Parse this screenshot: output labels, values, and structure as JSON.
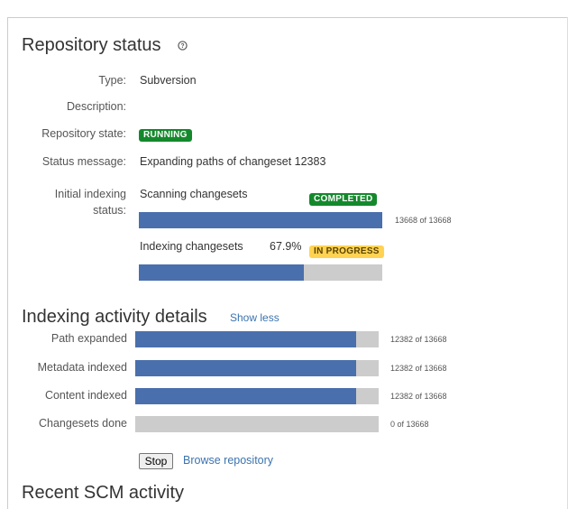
{
  "repository_status": {
    "title": "Repository status",
    "help_icon": "help-icon",
    "fields": {
      "type": {
        "label": "Type:",
        "value": "Subversion"
      },
      "description": {
        "label": "Description:",
        "value": ""
      },
      "state": {
        "label": "Repository state:",
        "badge": "RUNNING"
      },
      "message": {
        "label": "Status message:",
        "value": "Expanding paths of changeset 12383"
      }
    },
    "initial_indexing": {
      "label_line1": "Initial indexing",
      "label_line2": "status:",
      "scanning": {
        "label": "Scanning changesets",
        "badge": "COMPLETED",
        "count_text": "13668 of 13668",
        "done": 13668,
        "total": 13668
      },
      "indexing": {
        "label": "Indexing changesets",
        "percent_text": "67.9%",
        "badge": "IN PROGRESS",
        "progress": 0.679
      }
    }
  },
  "indexing_activity": {
    "title": "Indexing activity details",
    "toggle_link": "Show less",
    "rows": [
      {
        "label": "Path expanded",
        "count_text": "12382 of 13668",
        "done": 12382,
        "total": 13668
      },
      {
        "label": "Metadata indexed",
        "count_text": "12382 of 13668",
        "done": 12382,
        "total": 13668
      },
      {
        "label": "Content indexed",
        "count_text": "12382 of 13668",
        "done": 12382,
        "total": 13668
      },
      {
        "label": "Changesets done",
        "count_text": "0 of 13668",
        "done": 0,
        "total": 13668
      }
    ],
    "stop_button": "Stop",
    "browse_link": "Browse repository"
  },
  "recent_scm": {
    "title": "Recent SCM activity"
  },
  "colors": {
    "bar_fill": "#4a6fad",
    "bar_track": "#cccccc",
    "badge_green": "#14892c",
    "badge_yellow": "#ffd351",
    "link": "#3b73af"
  }
}
